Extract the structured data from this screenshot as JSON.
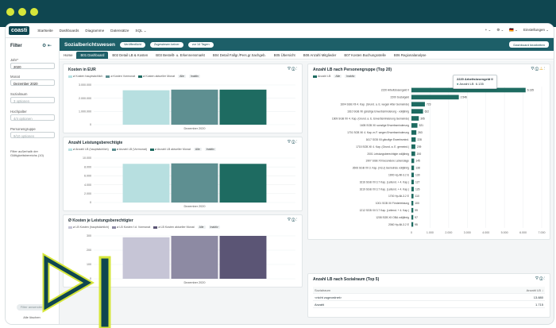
{
  "app": {
    "logo": "coasti"
  },
  "nav": {
    "items": [
      "Startseite",
      "Dashboards",
      "Diagramme",
      "Datensätze",
      "SQL ⌄"
    ],
    "right": [
      "+ ⌄",
      "⚙ ⌄",
      "🇩🇪 ⌄",
      "Einstellungen ⌄"
    ]
  },
  "sidebar": {
    "title": "Filter",
    "fields": [
      {
        "label": "Jahr*",
        "value": "2020",
        "dim": false
      },
      {
        "label": "Monat",
        "value": "Dezember 2020",
        "dim": false
      },
      {
        "label": "Sozialraum",
        "value": "3 optionen",
        "dim": true
      },
      {
        "label": "Hochpalter",
        "value": "4/4 optionen",
        "dim": true
      },
      {
        "label": "Personengruppe",
        "value": "9/10 optionen",
        "dim": true
      }
    ],
    "note": "Filter außerhalb der Gültigkeitsbereichs (10)",
    "apply": "Filter anwenden",
    "clear": "Alle löschen"
  },
  "header": {
    "title": "Sozialberichtswesen",
    "pills": [
      "Veröffentlicht",
      "Zugewiesen keiner",
      "vor 14 Tagen"
    ],
    "button": "Dashboard bearbeiten"
  },
  "tabs": [
    "Home",
    "B01 Dashboard",
    "B02 Detail LB & Kosten",
    "B03 Bestellt- u. Erkennensmarkt",
    "B04 Detail Fallgr./Pers.gr.Sachgeb.",
    "B05 Übersicht",
    "B08 Anzahl Mitglieder",
    "B07 Kosten Buchungsstelle",
    "B06 Regionalanalyse"
  ],
  "active_tab": 1,
  "colors": {
    "c1": "#b7dfe0",
    "c2": "#5e8f91",
    "c3": "#1e6b61",
    "k1": "#c6c5d6",
    "k2": "#8d8aa3",
    "k3": "#5b5575",
    "bar": "#1e6b61"
  },
  "chart_data": [
    {
      "type": "bar",
      "title": "Kosten in EUR",
      "legend": [
        "ø Kosten hauptsächlich",
        "ø Kosten Vormonat",
        "ø Kosten aktueller Monat",
        "Alle",
        "Inaktiv"
      ],
      "categories": [
        "Dezember 2020"
      ],
      "series": [
        {
          "name": "ø Kosten hauptsächlich",
          "values": [
            2600000
          ]
        },
        {
          "name": "ø Kosten Vormonat",
          "values": [
            2650000
          ]
        },
        {
          "name": "ø Kosten aktueller Monat",
          "values": [
            2650000
          ]
        }
      ],
      "yticks": [
        "0",
        "1.000.000",
        "2.000.000",
        "3.000.000"
      ],
      "ylim": [
        0,
        3000000
      ]
    },
    {
      "type": "bar",
      "title": "Anzahl Leistungsberechtigte",
      "legend": [
        "ø Anzahl LB (hauptsächlich)",
        "ø Anzahl LB (Vormonat)",
        "ø Anzahl LB aktueller Monat",
        "Alle",
        "Inaktiv"
      ],
      "categories": [
        "Dezember 2020"
      ],
      "series": [
        {
          "name": "ø Anzahl LB (hauptsächlich)",
          "values": [
            8700
          ]
        },
        {
          "name": "ø Anzahl LB (Vormonat)",
          "values": [
            8800
          ]
        },
        {
          "name": "ø Anzahl LB aktueller Monat",
          "values": [
            8700
          ]
        }
      ],
      "yticks": [
        "0",
        "2.000",
        "4.000",
        "6.000",
        "8.000",
        "10.000"
      ],
      "ylim": [
        0,
        10000
      ]
    },
    {
      "type": "bar",
      "title": "Ø Kosten je Leistungsberechtigter",
      "legend": [
        "ø LB Kosten (hauptsächlich)",
        "ø LB Kosten f.d. Vormonat",
        "ø LB Kosten aktueller Monat",
        "Alle",
        "Inaktiv"
      ],
      "categories": [
        "Dezember 2020"
      ],
      "series": [
        {
          "name": "ø LB Kosten (hauptsächlich)",
          "values": [
            290
          ]
        },
        {
          "name": "ø LB Kosten f.d. Vormonat",
          "values": [
            300
          ]
        },
        {
          "name": "ø LB Kosten aktueller Monat",
          "values": [
            300
          ]
        }
      ],
      "yticks": [
        "0",
        "100",
        "200",
        "300"
      ],
      "ylim": [
        0,
        300
      ]
    },
    {
      "type": "bar",
      "orientation": "horizontal",
      "title": "Anzahl LB nach Personengruppe (Top 20)",
      "legend": [
        "Anzahl LB",
        "Alle",
        "Inaktiv"
      ],
      "categories": [
        "2220 Arbeitslosengeld II",
        "2200 Sozialgeld",
        "1604 SGB XII 4. Kap. (Grund. a. E. wegen Alter Gemeinde)",
        "1610 SGB XII gänzlige Erwerbsminderung - volljährig",
        "1609 SGB XII 4. Kap. (Grund. a. E. Erwerbsminderung Gemeinde)",
        "1605 SGB XII sonstige Erwerbsminderung",
        "1701 SGB XII 4. Kap. m.F. wegen Erwerbsminderung",
        "1617 SGB XII gänzlige Erwerbsmind.",
        "1715 SGB XII 4. Kap. (Grund. a. E. gemeind.)",
        "2001 Leistungsberechtigte volljährig",
        "1907 SGB XII besondere Lebenslage",
        "2606 SGB XII 3. Kap. (HLU) Gemeinde volljährig",
        "1900 Hp.Alt-3.2 E",
        "1616 SGB XII 3.7 Kap. (Leitend. + 4. Kap.)",
        "1619 SGB XII 3.7 Kap. (Leitend. + 4. Kap.)",
        "1700 Hp.Alt-3.2 E",
        "1001 SGB XII Förderleistung",
        "1212 SGB XII 3.7 Kap. (Leitend. + 4. Kap.)",
        "1208 SGB XII OBA volljährig",
        "2060 Hp.Alt-3.2 E"
      ],
      "values": [
        6135,
        2546,
        723,
        622,
        395,
        321,
        263,
        228,
        209,
        200,
        145,
        138,
        130,
        127,
        126,
        110,
        100,
        99,
        97,
        95
      ],
      "xticks": [
        "0",
        "1.000",
        "2.000",
        "3.000",
        "4.000",
        "5.000",
        "6.000",
        "7.000"
      ],
      "xlim": [
        0,
        7000
      ],
      "tooltip": {
        "title": "2220 Arbeitslosengeld II",
        "label": "Anzahl LB",
        "value": "6.135"
      }
    }
  ],
  "table": {
    "title": "Anzahl LB nach Sozialraum (Top 5)",
    "headers": [
      "Sozialraum",
      "Anzahl LB ↓"
    ],
    "rows": [
      [
        "<nicht zugeordnet>",
        "13.880"
      ],
      [
        "Anzahl",
        "1.715"
      ]
    ]
  },
  "icons": {
    "filter": "filter-icon",
    "info": "info-icon",
    "more": "more-icon",
    "settings": "settings-icon",
    "collapse": "collapse-icon"
  }
}
